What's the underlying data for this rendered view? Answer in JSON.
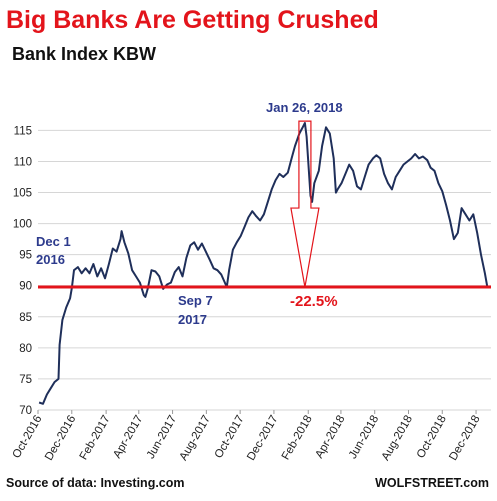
{
  "chart_data": {
    "type": "line",
    "title": "Big Banks Are Getting Crushed",
    "subtitle": "Bank Index KBW",
    "xlabel": "",
    "ylabel": "",
    "ylim": [
      70,
      117
    ],
    "yticks": [
      70,
      75,
      80,
      85,
      90,
      95,
      100,
      105,
      110,
      115
    ],
    "xticks": [
      "Oct-2016",
      "Dec-2016",
      "Feb-2017",
      "Apr-2017",
      "Jun-2017",
      "Aug-2017",
      "Oct-2017",
      "Dec-2017",
      "Feb-2018",
      "Apr-2018",
      "Jun-2018",
      "Aug-2018",
      "Oct-2018",
      "Dec-2018"
    ],
    "grid": "horizontal",
    "line_color": "#1f2f5a",
    "reference_line": {
      "value": 89.8,
      "color": "#e3141b"
    },
    "annotations": {
      "dec1_line1": "Dec 1",
      "dec1_line2": "2016",
      "sep7_line1": "Sep 7",
      "sep7_line2": "2017",
      "jan26": "Jan 26, 2018",
      "drop": "-22.5%"
    },
    "series": [
      {
        "x": [
          "2016-10-03",
          "2016-10-10",
          "2016-10-17",
          "2016-10-24",
          "2016-10-31",
          "2016-11-07",
          "2016-11-09",
          "2016-11-14",
          "2016-11-21",
          "2016-11-28",
          "2016-12-01",
          "2016-12-05",
          "2016-12-12",
          "2016-12-19",
          "2016-12-26",
          "2017-01-02",
          "2017-01-09",
          "2017-01-16",
          "2017-01-23",
          "2017-01-30",
          "2017-02-06",
          "2017-02-13",
          "2017-02-20",
          "2017-02-27",
          "2017-03-01",
          "2017-03-06",
          "2017-03-13",
          "2017-03-20",
          "2017-03-27",
          "2017-04-03",
          "2017-04-10",
          "2017-04-13",
          "2017-04-17",
          "2017-04-24",
          "2017-05-01",
          "2017-05-08",
          "2017-05-15",
          "2017-05-22",
          "2017-05-29",
          "2017-06-05",
          "2017-06-12",
          "2017-06-19",
          "2017-06-26",
          "2017-07-03",
          "2017-07-10",
          "2017-07-17",
          "2017-07-24",
          "2017-07-31",
          "2017-08-07",
          "2017-08-14",
          "2017-08-21",
          "2017-08-28",
          "2017-09-07",
          "2017-09-11",
          "2017-09-18",
          "2017-09-25",
          "2017-10-02",
          "2017-10-09",
          "2017-10-16",
          "2017-10-23",
          "2017-10-30",
          "2017-11-06",
          "2017-11-13",
          "2017-11-20",
          "2017-11-27",
          "2017-12-04",
          "2017-12-11",
          "2017-12-18",
          "2017-12-26",
          "2018-01-02",
          "2018-01-08",
          "2018-01-16",
          "2018-01-22",
          "2018-01-26",
          "2018-01-29",
          "2018-02-05",
          "2018-02-08",
          "2018-02-12",
          "2018-02-20",
          "2018-02-26",
          "2018-03-05",
          "2018-03-12",
          "2018-03-19",
          "2018-03-23",
          "2018-03-26",
          "2018-04-02",
          "2018-04-09",
          "2018-04-16",
          "2018-04-23",
          "2018-04-30",
          "2018-05-07",
          "2018-05-14",
          "2018-05-21",
          "2018-05-29",
          "2018-06-04",
          "2018-06-11",
          "2018-06-18",
          "2018-06-25",
          "2018-07-02",
          "2018-07-09",
          "2018-07-16",
          "2018-07-23",
          "2018-07-30",
          "2018-08-06",
          "2018-08-13",
          "2018-08-20",
          "2018-08-27",
          "2018-09-04",
          "2018-09-10",
          "2018-09-17",
          "2018-09-24",
          "2018-10-01",
          "2018-10-08",
          "2018-10-15",
          "2018-10-22",
          "2018-10-29",
          "2018-11-05",
          "2018-11-12",
          "2018-11-19",
          "2018-11-26",
          "2018-12-03",
          "2018-12-10",
          "2018-12-17",
          "2018-12-21"
        ],
        "values": [
          71.2,
          71.0,
          72.5,
          73.5,
          74.5,
          75.0,
          80.5,
          84.5,
          86.5,
          88.0,
          89.6,
          92.5,
          93.0,
          92.0,
          92.8,
          92.0,
          93.5,
          91.5,
          92.8,
          91.2,
          93.5,
          96.0,
          95.5,
          97.5,
          98.8,
          97.0,
          95.2,
          92.5,
          91.5,
          90.5,
          88.5,
          88.2,
          89.5,
          92.5,
          92.3,
          91.5,
          89.5,
          90.2,
          90.5,
          92.2,
          93.0,
          91.5,
          94.5,
          96.5,
          97.0,
          95.8,
          96.8,
          95.5,
          94.2,
          92.8,
          92.5,
          91.8,
          89.8,
          92.5,
          95.8,
          97.0,
          98.0,
          99.5,
          101.0,
          102.0,
          101.2,
          100.5,
          101.5,
          103.5,
          105.5,
          107.0,
          108.0,
          107.5,
          108.2,
          110.5,
          112.5,
          114.5,
          115.5,
          116.2,
          114.0,
          104.5,
          103.5,
          106.5,
          108.5,
          112.5,
          115.5,
          114.5,
          110.5,
          105.0,
          105.5,
          106.5,
          108.0,
          109.5,
          108.5,
          106.0,
          105.5,
          107.5,
          109.5,
          110.5,
          111.0,
          110.5,
          108.0,
          106.5,
          105.5,
          107.5,
          108.5,
          109.5,
          110.0,
          110.5,
          111.2,
          110.5,
          110.8,
          110.2,
          109.0,
          108.5,
          106.5,
          105.2,
          103.0,
          100.5,
          97.5,
          98.5,
          102.5,
          101.5,
          100.5,
          101.5,
          98.5,
          95.0,
          92.0,
          90.0
        ]
      }
    ]
  },
  "footer": {
    "source": "Source of data: Investing.com",
    "brand": "WOLFSTREET.com"
  }
}
